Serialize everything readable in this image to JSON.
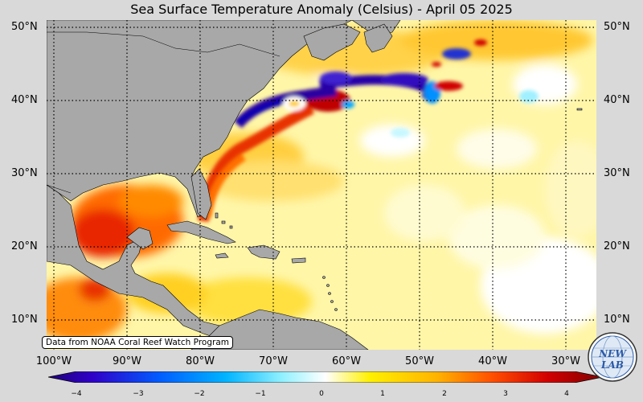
{
  "title": "Sea Surface Temperature Anomaly (Celsius) - April 05 2025",
  "attribution": "Data from NOAA Coral Reef Watch Program",
  "map": {
    "lon_range": [
      -102,
      -27
    ],
    "lat_range": [
      6,
      51
    ],
    "lat_labels_left": [
      "50°N",
      "40°N",
      "30°N",
      "20°N",
      "10°N"
    ],
    "lat_labels_right": [
      "50°N",
      "40°N",
      "30°N",
      "20°N",
      "10°N"
    ],
    "lon_labels": [
      "100°W",
      "90°W",
      "80°W",
      "70°W",
      "60°W",
      "50°W",
      "40°W",
      "30°W"
    ],
    "gridlines": "dotted",
    "land_color": "#a8a8a8",
    "background_color": "#d9d9d9"
  },
  "colorbar": {
    "range": [
      -4,
      4
    ],
    "ticks": [
      "−4",
      "−3",
      "−2",
      "−1",
      "0",
      "1",
      "2",
      "3",
      "4"
    ],
    "colors": [
      "#20007a",
      "#3000c8",
      "#005cff",
      "#00b4ff",
      "#8ff0ff",
      "#ffffff",
      "#fff000",
      "#ffb400",
      "#ff5000",
      "#d20000",
      "#800000"
    ]
  },
  "logo": {
    "text": "NEW LAB",
    "icon": "globe-logo-icon"
  }
}
